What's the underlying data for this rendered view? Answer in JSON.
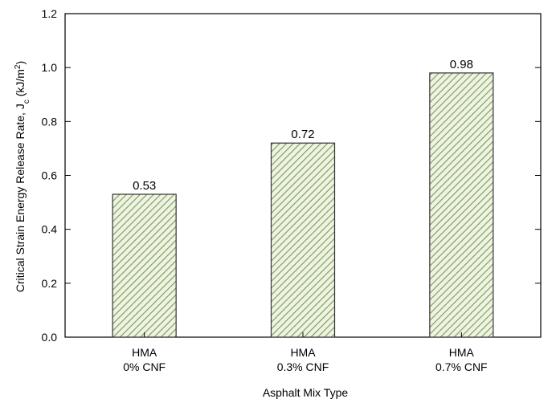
{
  "chart_data": {
    "type": "bar",
    "categories": [
      [
        "HMA",
        "0% CNF"
      ],
      [
        "HMA",
        "0.3% CNF"
      ],
      [
        "HMA",
        "0.7% CNF"
      ]
    ],
    "values": [
      0.53,
      0.72,
      0.98
    ],
    "data_labels": [
      "0.53",
      "0.72",
      "0.98"
    ],
    "xlabel": "Asphalt Mix Type",
    "ylabel": "Critical Strain Energy Release Rate, J",
    "ylabel_subscript": "c",
    "ylabel_unit": " (kJ/m",
    "ylabel_unit_sup": "2",
    "ylabel_unit_close": ")",
    "ylim": [
      0,
      1.2
    ],
    "yticks": [
      "0.0",
      "0.2",
      "0.4",
      "0.6",
      "0.8",
      "1.0",
      "1.2"
    ],
    "grid": false,
    "legend": "none",
    "colors": {
      "bar_fill_pattern": "#7a9a50",
      "bar_background": "#eef3e4",
      "bar_outline": "#333333",
      "axis": "#000000"
    }
  }
}
